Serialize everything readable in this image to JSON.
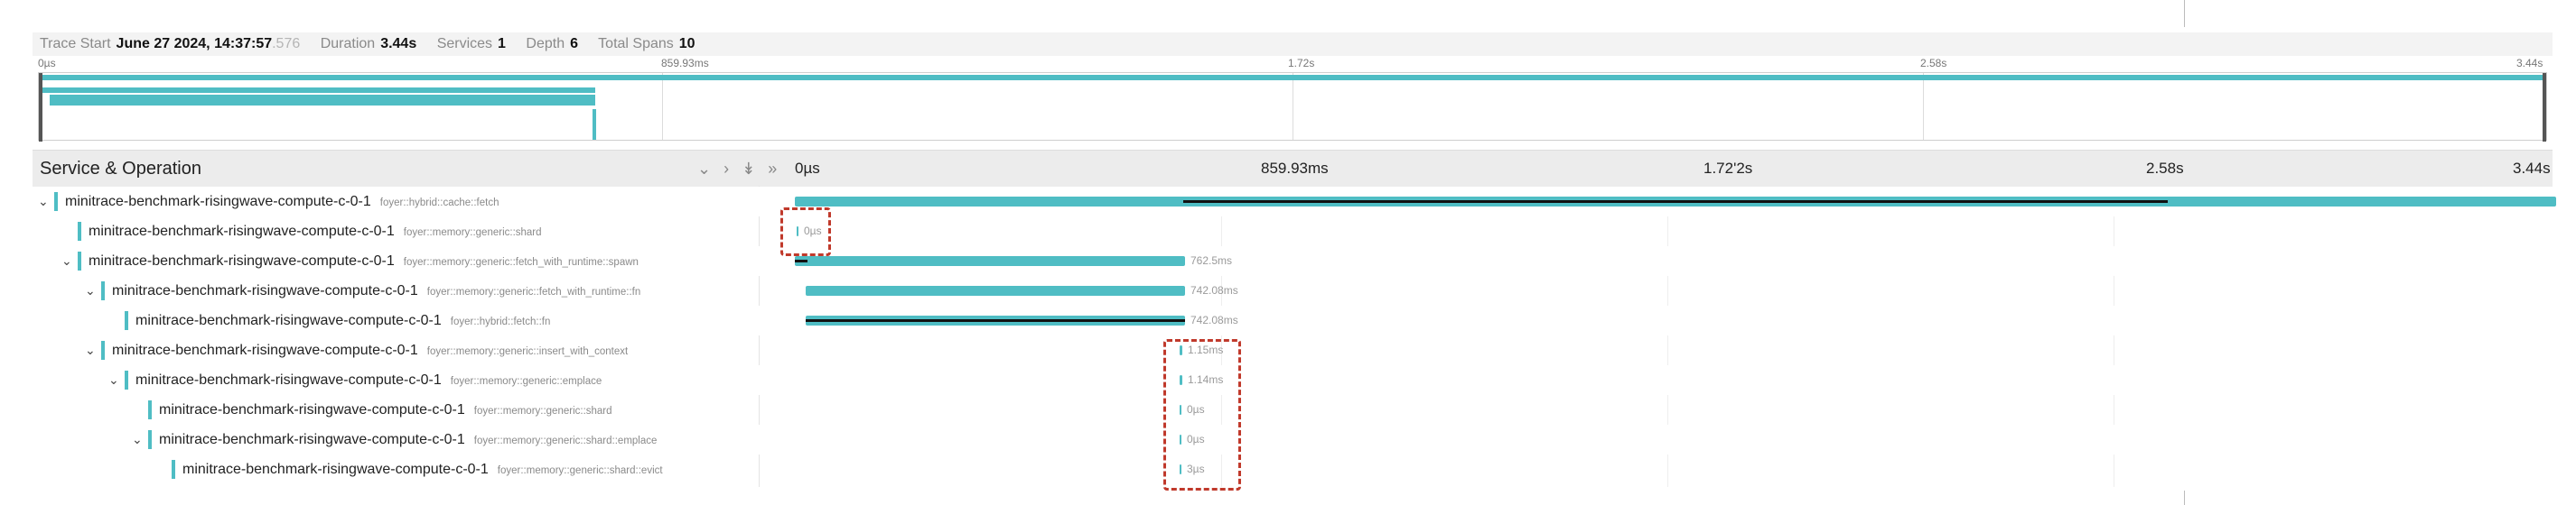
{
  "header": {
    "trace_start_label": "Trace Start",
    "trace_start_value": "June 27 2024, 14:37:57",
    "trace_start_ms": ".576",
    "duration_label": "Duration",
    "duration_value": "3.44s",
    "services_label": "Services",
    "services_value": "1",
    "depth_label": "Depth",
    "depth_value": "6",
    "total_spans_label": "Total Spans",
    "total_spans_value": "10"
  },
  "minimap": {
    "ticks": [
      "0µs",
      "859.93ms",
      "1.72s",
      "2.58s",
      "3.44s"
    ]
  },
  "table_header": {
    "title": "Service & Operation",
    "ticks": [
      "0µs",
      "859.93ms",
      "1.72'2s",
      "2.58s",
      "3.44s"
    ]
  },
  "colors": {
    "span": "#4fbdc4",
    "highlight": "#c0392b"
  },
  "spans": [
    {
      "service": "minitrace-benchmark-risingwave-compute-c-0-1",
      "operation": "foyer::hybrid::cache::fetch",
      "depth": 0,
      "caret": "⌄",
      "label": ""
    },
    {
      "service": "minitrace-benchmark-risingwave-compute-c-0-1",
      "operation": "foyer::memory::generic::shard",
      "depth": 1,
      "caret": "",
      "label": "0µs"
    },
    {
      "service": "minitrace-benchmark-risingwave-compute-c-0-1",
      "operation": "foyer::memory::generic::fetch_with_runtime::spawn",
      "depth": 1,
      "caret": "⌄",
      "label": "762.5ms"
    },
    {
      "service": "minitrace-benchmark-risingwave-compute-c-0-1",
      "operation": "foyer::memory::generic::fetch_with_runtime::fn",
      "depth": 2,
      "caret": "⌄",
      "label": "742.08ms"
    },
    {
      "service": "minitrace-benchmark-risingwave-compute-c-0-1",
      "operation": "foyer::hybrid::fetch::fn",
      "depth": 3,
      "caret": "",
      "label": "742.08ms"
    },
    {
      "service": "minitrace-benchmark-risingwave-compute-c-0-1",
      "operation": "foyer::memory::generic::insert_with_context",
      "depth": 2,
      "caret": "⌄",
      "label": "1.15ms"
    },
    {
      "service": "minitrace-benchmark-risingwave-compute-c-0-1",
      "operation": "foyer::memory::generic::emplace",
      "depth": 3,
      "caret": "⌄",
      "label": "1.14ms"
    },
    {
      "service": "minitrace-benchmark-risingwave-compute-c-0-1",
      "operation": "foyer::memory::generic::shard",
      "depth": 4,
      "caret": "",
      "label": "0µs"
    },
    {
      "service": "minitrace-benchmark-risingwave-compute-c-0-1",
      "operation": "foyer::memory::generic::shard::emplace",
      "depth": 4,
      "caret": "⌄",
      "label": "0µs"
    },
    {
      "service": "minitrace-benchmark-risingwave-compute-c-0-1",
      "operation": "foyer::memory::generic::shard::evict",
      "depth": 5,
      "caret": "",
      "label": "3µs"
    }
  ]
}
